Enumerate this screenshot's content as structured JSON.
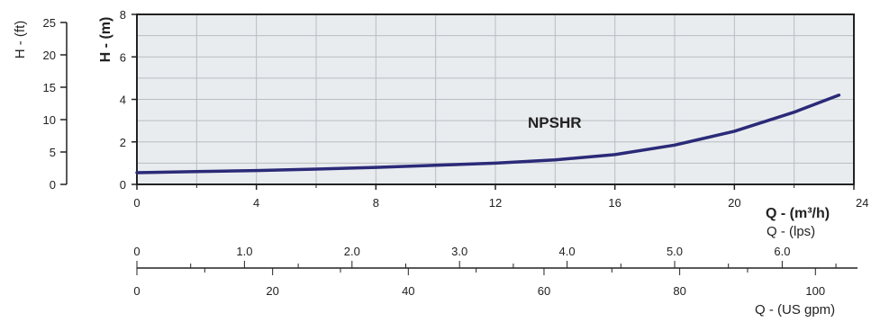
{
  "chart_data": {
    "type": "line",
    "curve_label": "NPSHR",
    "x_axis": {
      "label": "Q - (m³/h)",
      "min": 0,
      "max": 24,
      "ticks": [
        0,
        4,
        8,
        12,
        16,
        20,
        24
      ]
    },
    "y_axis": {
      "label": "H - (m)",
      "min": 0,
      "max": 8,
      "ticks": [
        0,
        2,
        4,
        6,
        8
      ]
    },
    "y_axis_secondary": {
      "label": "H - (ft)",
      "ticks": [
        0,
        5,
        10,
        15,
        20,
        25
      ]
    },
    "x_axis_lps": {
      "label": "Q - (lps)",
      "ticks": [
        "0",
        "1.0",
        "2.0",
        "3.0",
        "4.0",
        "5.0",
        "6.0"
      ]
    },
    "x_axis_gpm": {
      "label": "Q - (US gpm)",
      "ticks": [
        0,
        20,
        40,
        60,
        80,
        100
      ]
    },
    "grid": true,
    "series": [
      {
        "name": "NPSHR",
        "color": "#2b2a78",
        "x": [
          0,
          2,
          4,
          6,
          8,
          10,
          12,
          14,
          16,
          18,
          20,
          22,
          23.5
        ],
        "y": [
          0.55,
          0.6,
          0.65,
          0.72,
          0.8,
          0.9,
          1.0,
          1.15,
          1.4,
          1.85,
          2.5,
          3.4,
          4.2
        ]
      }
    ]
  },
  "colors": {
    "plot_background": "#e9ecef",
    "grid": "#b9bcc0",
    "curve": "#2b2a78",
    "axis": "#222222"
  }
}
